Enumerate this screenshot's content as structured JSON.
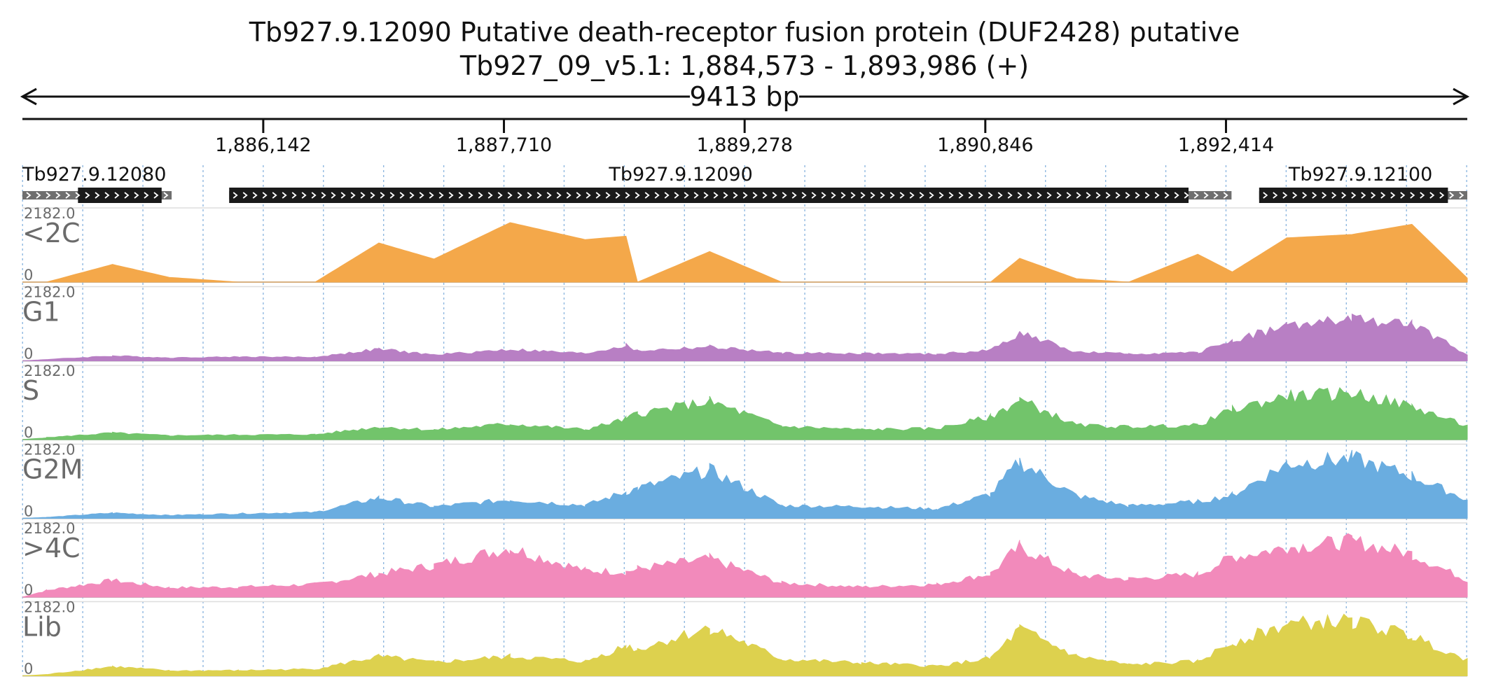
{
  "chart_data": {
    "type": "area",
    "title": "Tb927.9.12090  Putative death-receptor fusion protein (DUF2428)  putative",
    "subtitle": "Tb927_09_v5.1: 1,884,573 - 1,893,986 (+)",
    "span_label": "9413 bp",
    "xlim": [
      1884573,
      1893986
    ],
    "ticks": [
      {
        "value": 1886142,
        "label": "1,886,142"
      },
      {
        "value": 1887710,
        "label": "1,887,710"
      },
      {
        "value": 1889278,
        "label": "1,889,278"
      },
      {
        "value": 1890846,
        "label": "1,890,846"
      },
      {
        "value": 1892414,
        "label": "1,892,414"
      }
    ],
    "genes": [
      {
        "name": "Tb927.9.12080",
        "start": 1884573,
        "end": 1885545,
        "cds_start": 1884935,
        "cds_end": 1885480
      },
      {
        "name": "Tb927.9.12090",
        "start": 1885920,
        "end": 1892450,
        "cds_start": 1885920,
        "cds_end": 1892170
      },
      {
        "name": "Tb927.9.12100",
        "start": 1892630,
        "end": 1893986,
        "cds_start": 1892630,
        "cds_end": 1893860
      }
    ],
    "tracks": [
      {
        "name": "<2C",
        "color": "#f4a84a",
        "ylim": [
          0,
          2182.0
        ],
        "max_label": "2182.0",
        "min_label": "0"
      },
      {
        "name": "G1",
        "color": "#b87fc4",
        "ylim": [
          0,
          2182.0
        ],
        "max_label": "2182.0",
        "min_label": "0"
      },
      {
        "name": "S",
        "color": "#72c46b",
        "ylim": [
          0,
          2182.0
        ],
        "max_label": "2182.0",
        "min_label": "0"
      },
      {
        "name": "G2M",
        "color": "#6aade0",
        "ylim": [
          0,
          2182.0
        ],
        "max_label": "2182.0",
        "min_label": "0"
      },
      {
        "name": ">4C",
        "color": "#f28abb",
        "ylim": [
          0,
          2182.0
        ],
        "max_label": "2182.0",
        "min_label": "0"
      },
      {
        "name": "Lib",
        "color": "#ddd14e",
        "ylim": [
          0,
          2182.0
        ],
        "max_label": "2182.0",
        "min_label": "0"
      }
    ],
    "coverage_x": [
      1884573,
      1884730,
      1885160,
      1885530,
      1885980,
      1886480,
      1886895,
      1887255,
      1887750,
      1888240,
      1888505,
      1888580,
      1889050,
      1889520,
      1890040,
      1890530,
      1890880,
      1891070,
      1891440,
      1891780,
      1892230,
      1892455,
      1892810,
      1893235,
      1893625,
      1893986
    ],
    "coverage": {
      "<2C": [
        0,
        0,
        520,
        140,
        0,
        0,
        1150,
        680,
        1750,
        1250,
        1350,
        0,
        900,
        0,
        0,
        0,
        0,
        700,
        100,
        0,
        820,
        300,
        1300,
        1400,
        1700,
        120
      ],
      "G1": [
        0,
        40,
        150,
        90,
        120,
        110,
        350,
        180,
        340,
        220,
        460,
        300,
        420,
        230,
        220,
        200,
        320,
        850,
        260,
        210,
        240,
        620,
        1050,
        1250,
        1100,
        200
      ],
      "S": [
        0,
        60,
        200,
        120,
        140,
        150,
        380,
        290,
        470,
        300,
        620,
        780,
        1150,
        400,
        300,
        330,
        680,
        1200,
        430,
        380,
        430,
        900,
        1300,
        1400,
        1000,
        400
      ],
      "G2M": [
        0,
        30,
        160,
        90,
        140,
        180,
        620,
        350,
        560,
        390,
        800,
        900,
        1450,
        380,
        350,
        280,
        720,
        1700,
        680,
        370,
        500,
        700,
        1650,
        1800,
        1280,
        560
      ],
      ">4C": [
        0,
        200,
        500,
        280,
        300,
        380,
        700,
        950,
        1480,
        800,
        760,
        850,
        1150,
        420,
        300,
        380,
        700,
        1520,
        650,
        540,
        680,
        1200,
        1500,
        1680,
        1300,
        500
      ],
      "Lib": [
        0,
        40,
        280,
        150,
        160,
        200,
        580,
        400,
        580,
        430,
        900,
        800,
        1450,
        500,
        380,
        290,
        520,
        1400,
        590,
        330,
        430,
        1000,
        1550,
        1650,
        1200,
        480
      ]
    }
  }
}
